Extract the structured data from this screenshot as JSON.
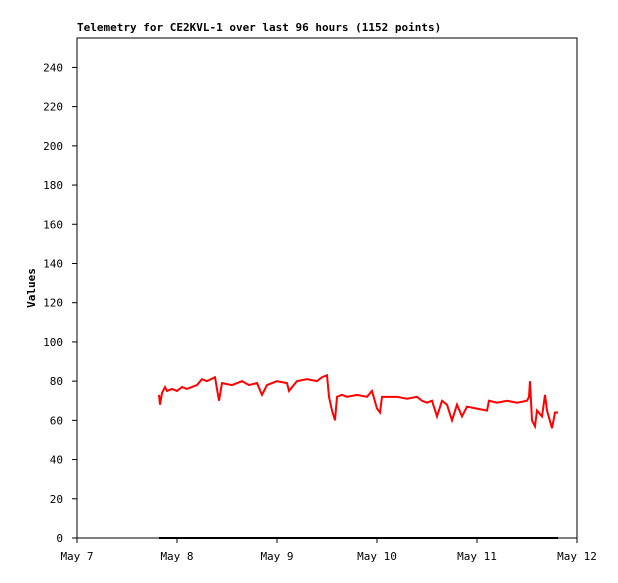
{
  "chart_data": {
    "type": "line",
    "title": "Telemetry for CE2KVL-1 over last 96 hours (1152 points)",
    "ylabel": "Values",
    "xlim": [
      7,
      12
    ],
    "xticks": [
      {
        "value": 7,
        "label": "May 7"
      },
      {
        "value": 8,
        "label": "May 8"
      },
      {
        "value": 9,
        "label": "May 9"
      },
      {
        "value": 10,
        "label": "May 10"
      },
      {
        "value": 11,
        "label": "May 11"
      },
      {
        "value": 12,
        "label": "May 12"
      }
    ],
    "ylim": [
      0,
      255
    ],
    "yticks": [
      0,
      20,
      40,
      60,
      80,
      100,
      120,
      140,
      160,
      180,
      200,
      220,
      240
    ],
    "grid": false,
    "series": [
      {
        "color": "#ff0000",
        "x": [
          7.82,
          7.83,
          7.85,
          7.88,
          7.9,
          7.95,
          8.0,
          8.05,
          8.1,
          8.2,
          8.25,
          8.3,
          8.38,
          8.42,
          8.45,
          8.55,
          8.65,
          8.72,
          8.8,
          8.85,
          8.9,
          9.0,
          9.1,
          9.12,
          9.2,
          9.3,
          9.4,
          9.45,
          9.5,
          9.52,
          9.55,
          9.58,
          9.6,
          9.65,
          9.7,
          9.8,
          9.9,
          9.95,
          10.0,
          10.03,
          10.05,
          10.1,
          10.2,
          10.3,
          10.4,
          10.45,
          10.5,
          10.55,
          10.6,
          10.65,
          10.7,
          10.75,
          10.8,
          10.85,
          10.9,
          11.0,
          11.1,
          11.12,
          11.2,
          11.3,
          11.4,
          11.5,
          11.52,
          11.53,
          11.55,
          11.58,
          11.6,
          11.65,
          11.68,
          11.7,
          11.75,
          11.78,
          11.81
        ],
        "values": [
          73,
          68,
          74,
          77,
          75,
          76,
          75,
          77,
          76,
          78,
          81,
          80,
          82,
          70,
          79,
          78,
          80,
          78,
          79,
          73,
          78,
          80,
          79,
          75,
          80,
          81,
          80,
          82,
          83,
          72,
          65,
          60,
          72,
          73,
          72,
          73,
          72,
          75,
          66,
          64,
          72,
          72,
          72,
          71,
          72,
          70,
          69,
          70,
          62,
          70,
          68,
          60,
          68,
          62,
          67,
          66,
          65,
          70,
          69,
          70,
          69,
          70,
          72,
          80,
          60,
          57,
          65,
          62,
          73,
          65,
          56,
          64,
          64
        ]
      },
      {
        "color": "#000000",
        "x": [
          7.82,
          11.81
        ],
        "values": [
          0,
          0
        ]
      }
    ]
  }
}
